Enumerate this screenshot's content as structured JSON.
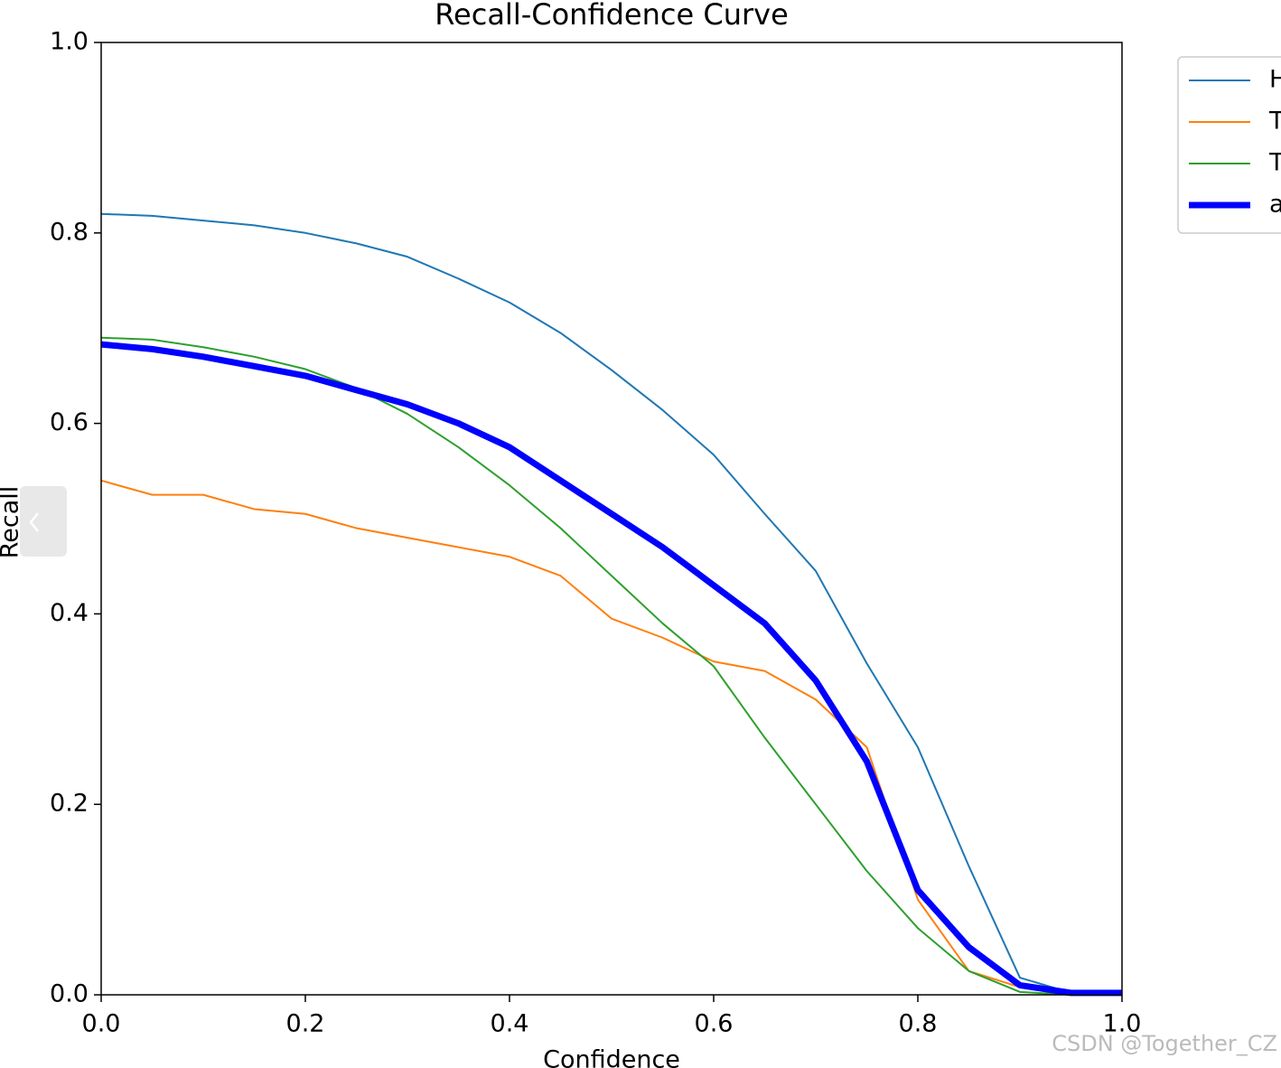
{
  "chart_data": {
    "type": "line",
    "title": "Recall-Confidence Curve",
    "x_label": "Confidence",
    "y_label": "Recall",
    "annotation": "CSDN @Together_CZ",
    "x": [
      0,
      0.05,
      0.1,
      0.15,
      0.2,
      0.25,
      0.3,
      0.35,
      0.4,
      0.45,
      0.5,
      0.55,
      0.6,
      0.65,
      0.7,
      0.75,
      0.8,
      0.85,
      0.9,
      0.95,
      1.0
    ],
    "series": [
      {
        "name": "H",
        "color": "#1f77b4",
        "width": 2,
        "values": [
          0.82,
          0.818,
          0.813,
          0.808,
          0.8,
          0.789,
          0.775,
          0.752,
          0.727,
          0.695,
          0.656,
          0.614,
          0.567,
          0.505,
          0.445,
          0.348,
          0.26,
          0.135,
          0.018,
          0.002,
          0.002
        ]
      },
      {
        "name": "T",
        "color": "#ff7f0e",
        "width": 2,
        "values": [
          0.54,
          0.525,
          0.525,
          0.51,
          0.505,
          0.49,
          0.48,
          0.47,
          0.46,
          0.44,
          0.395,
          0.375,
          0.35,
          0.34,
          0.31,
          0.26,
          0.1,
          0.025,
          0.008,
          0.002,
          0.002
        ]
      },
      {
        "name": "T",
        "color": "#2ca02c",
        "width": 2,
        "values": [
          0.69,
          0.688,
          0.68,
          0.67,
          0.657,
          0.637,
          0.61,
          0.575,
          0.535,
          0.49,
          0.44,
          0.39,
          0.345,
          0.27,
          0.2,
          0.13,
          0.07,
          0.025,
          0.003,
          0.0,
          0.0
        ]
      },
      {
        "name": "a",
        "color": "#0000ff",
        "width": 7,
        "values": [
          0.683,
          0.678,
          0.67,
          0.66,
          0.65,
          0.635,
          0.62,
          0.6,
          0.575,
          0.54,
          0.505,
          0.47,
          0.43,
          0.39,
          0.33,
          0.245,
          0.11,
          0.05,
          0.01,
          0.002,
          0.002
        ]
      }
    ],
    "xlim": [
      0,
      1
    ],
    "ylim": [
      0,
      1
    ],
    "xticks": [
      {
        "value": 0,
        "label": "0.0"
      },
      {
        "value": 0.2,
        "label": "0.2"
      },
      {
        "value": 0.4,
        "label": "0.4"
      },
      {
        "value": 0.6,
        "label": "0.6"
      },
      {
        "value": 0.8,
        "label": "0.8"
      },
      {
        "value": 1.0,
        "label": "1.0"
      }
    ],
    "yticks": [
      {
        "value": 0,
        "label": "0.0"
      },
      {
        "value": 0.2,
        "label": "0.2"
      },
      {
        "value": 0.4,
        "label": "0.4"
      },
      {
        "value": 0.6,
        "label": "0.6"
      },
      {
        "value": 0.8,
        "label": "0.8"
      },
      {
        "value": 1.0,
        "label": "1.0"
      }
    ],
    "grid": false,
    "legend": "outside upper right"
  }
}
